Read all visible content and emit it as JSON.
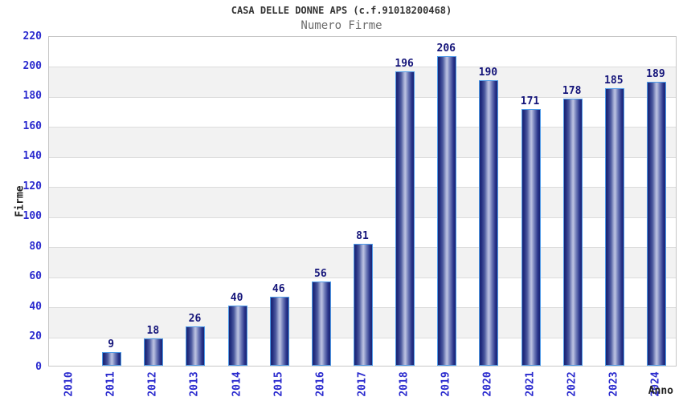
{
  "chart_data": {
    "type": "bar",
    "title": "CASA DELLE DONNE APS (c.f.91018200468)",
    "subtitle": "Numero Firme",
    "xlabel": "Anno",
    "ylabel": "Firme",
    "categories": [
      "2010",
      "2011",
      "2012",
      "2013",
      "2014",
      "2015",
      "2016",
      "2017",
      "2018",
      "2019",
      "2020",
      "2021",
      "2022",
      "2023",
      "2024"
    ],
    "values": [
      0,
      9,
      18,
      26,
      40,
      46,
      56,
      81,
      196,
      206,
      190,
      171,
      178,
      185,
      189
    ],
    "value_labels_shown": [
      "",
      "9",
      "18",
      "26",
      "40",
      "46",
      "56",
      "81",
      "196",
      "206",
      "190",
      "171",
      "178",
      "185",
      "189"
    ],
    "ylim": [
      0,
      220
    ],
    "ytick_step": 20,
    "yticks": [
      0,
      20,
      40,
      60,
      80,
      100,
      120,
      140,
      160,
      180,
      200,
      220
    ],
    "grid": true,
    "alternating_bands": true,
    "legend_position": "none",
    "colors": {
      "bar_edge": "#1a2473",
      "bar_center": "#bcc2e1",
      "bar_outline": "#4f9be8",
      "axis_tick_label": "#2a2ace",
      "value_label": "#15157a",
      "band_gray": "#f2f2f2",
      "gridline": "#dcdcdc",
      "plot_border": "#c6c6c6",
      "title": "#333333",
      "subtitle": "#6b6b6b",
      "axis_title": "#222222"
    }
  }
}
